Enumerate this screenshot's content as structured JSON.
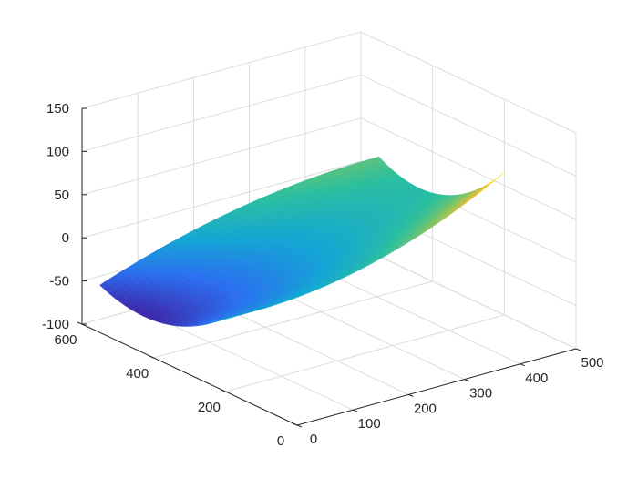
{
  "chart_data": {
    "type": "surface",
    "title": "",
    "xlabel": "",
    "ylabel": "",
    "zlabel": "",
    "grid": true,
    "box": false,
    "colormap": "parula",
    "colormap_stops": [
      "#3e26a8",
      "#2c6ff0",
      "#14a7d4",
      "#2cbf9f",
      "#88c660",
      "#e6bd3a",
      "#f9fb15"
    ],
    "axes": {
      "x": {
        "lim": [
          0,
          500
        ],
        "ticks": [
          0,
          100,
          200,
          300,
          400,
          500
        ],
        "tick_labels": [
          "0",
          "100",
          "200",
          "300",
          "400",
          "500"
        ]
      },
      "y": {
        "lim": [
          0,
          600
        ],
        "ticks": [
          0,
          200,
          400,
          600
        ],
        "tick_labels": [
          "0",
          "200",
          "400",
          "600"
        ]
      },
      "z": {
        "lim": [
          -100,
          150
        ],
        "ticks": [
          -100,
          -50,
          0,
          50,
          100,
          150
        ],
        "tick_labels": [
          "-100",
          "-50",
          "0",
          "50",
          "100",
          "150"
        ]
      }
    },
    "surface": {
      "x_range": [
        0,
        500
      ],
      "y_range": [
        200,
        550
      ],
      "z_description": "saddle-shaped sheet: near x=0 z ranges about -15 (y=200) to -45 (y=550); at x=500 z ranges about 65 (y=200) to 15 (y=550)",
      "samples": [
        {
          "x": 0,
          "y": 200,
          "z": -15
        },
        {
          "x": 0,
          "y": 375,
          "z": -55
        },
        {
          "x": 0,
          "y": 550,
          "z": -45
        },
        {
          "x": 250,
          "y": 200,
          "z": 0
        },
        {
          "x": 250,
          "y": 375,
          "z": -20
        },
        {
          "x": 250,
          "y": 550,
          "z": 0
        },
        {
          "x": 500,
          "y": 200,
          "z": 65
        },
        {
          "x": 500,
          "y": 375,
          "z": 5
        },
        {
          "x": 500,
          "y": 550,
          "z": 15
        }
      ]
    }
  }
}
